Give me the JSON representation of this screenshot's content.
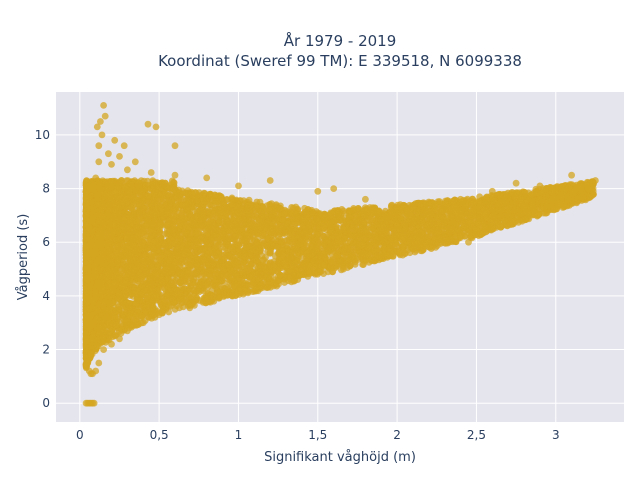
{
  "chart_data": {
    "type": "scatter",
    "title": "År 1979 - 2019",
    "subtitle": "Koordinat (Sweref 99 TM): E 339518, N 6099338",
    "xlabel": "Signifikant våghöjd (m)",
    "ylabel": "Vågperiod (s)",
    "xlim": [
      -0.15,
      3.43
    ],
    "ylim": [
      -0.7,
      11.6
    ],
    "x_ticks": [
      0,
      0.5,
      1,
      1.5,
      2,
      2.5,
      3
    ],
    "x_tick_labels": [
      "0",
      "0,5",
      "1",
      "1,5",
      "2",
      "2,5",
      "3"
    ],
    "y_ticks": [
      0,
      2,
      4,
      6,
      8,
      10
    ],
    "y_tick_labels": [
      "0",
      "2",
      "4",
      "6",
      "8",
      "10"
    ],
    "grid": true,
    "legend": "none",
    "colors": {
      "marker": "#d4a520",
      "plot_background": "#e5e5ee",
      "grid": "#ffffff",
      "text": "#2a3f5f"
    },
    "series": [
      {
        "values_description_points": [
          [
            0.04,
            0
          ],
          [
            0.05,
            0
          ],
          [
            0.06,
            0
          ],
          [
            0.07,
            0
          ],
          [
            0.08,
            0
          ],
          [
            0.09,
            0
          ],
          [
            0.05,
            1.5
          ],
          [
            0.06,
            1.2
          ],
          [
            0.07,
            1.1
          ],
          [
            0.08,
            1.1
          ],
          [
            0.1,
            1.2
          ],
          [
            0.12,
            1.5
          ],
          [
            0.05,
            2.4
          ],
          [
            0.06,
            3.5
          ],
          [
            0.05,
            5.0
          ],
          [
            0.06,
            6.5
          ],
          [
            0.07,
            7.5
          ],
          [
            0.08,
            8.0
          ],
          [
            0.1,
            8.4
          ],
          [
            0.12,
            9.0
          ],
          [
            0.12,
            9.6
          ],
          [
            0.14,
            10.0
          ],
          [
            0.15,
            11.1
          ],
          [
            0.13,
            10.5
          ],
          [
            0.11,
            10.3
          ],
          [
            0.16,
            10.7
          ],
          [
            0.18,
            9.3
          ],
          [
            0.22,
            9.8
          ],
          [
            0.25,
            9.2
          ],
          [
            0.28,
            9.6
          ],
          [
            0.35,
            9.0
          ],
          [
            0.43,
            10.4
          ],
          [
            0.48,
            10.3
          ],
          [
            0.6,
            9.6
          ],
          [
            0.2,
            8.9
          ],
          [
            0.3,
            8.7
          ],
          [
            0.15,
            2.0
          ],
          [
            0.2,
            2.2
          ],
          [
            0.25,
            2.4
          ],
          [
            0.3,
            2.7
          ],
          [
            0.4,
            3.0
          ],
          [
            0.5,
            3.3
          ],
          [
            0.6,
            3.5
          ],
          [
            0.7,
            3.7
          ],
          [
            0.8,
            3.9
          ],
          [
            1.0,
            4.2
          ],
          [
            1.2,
            4.5
          ],
          [
            1.5,
            4.9
          ],
          [
            1.8,
            5.3
          ],
          [
            2.0,
            5.7
          ],
          [
            2.2,
            6.0
          ],
          [
            2.4,
            6.3
          ],
          [
            2.6,
            6.8
          ],
          [
            2.8,
            7.2
          ],
          [
            3.0,
            7.6
          ],
          [
            3.15,
            8.0
          ],
          [
            3.25,
            8.3
          ],
          [
            3.1,
            8.5
          ],
          [
            2.9,
            8.1
          ],
          [
            2.6,
            7.9
          ],
          [
            2.4,
            7.6
          ],
          [
            2.2,
            7.5
          ],
          [
            2.0,
            7.3
          ],
          [
            1.8,
            7.6
          ],
          [
            1.6,
            8.0
          ],
          [
            1.5,
            7.9
          ],
          [
            1.2,
            8.3
          ],
          [
            1.0,
            8.1
          ],
          [
            0.8,
            8.4
          ],
          [
            0.6,
            8.5
          ],
          [
            0.45,
            8.6
          ],
          [
            2.45,
            6.0
          ],
          [
            2.55,
            6.6
          ],
          [
            2.7,
            7.0
          ],
          [
            2.15,
            5.8
          ],
          [
            1.9,
            5.5
          ],
          [
            2.3,
            6.2
          ],
          [
            3.05,
            7.9
          ],
          [
            3.2,
            8.1
          ],
          [
            2.75,
            8.2
          ],
          [
            2.85,
            7.4
          ]
        ]
      }
    ]
  }
}
